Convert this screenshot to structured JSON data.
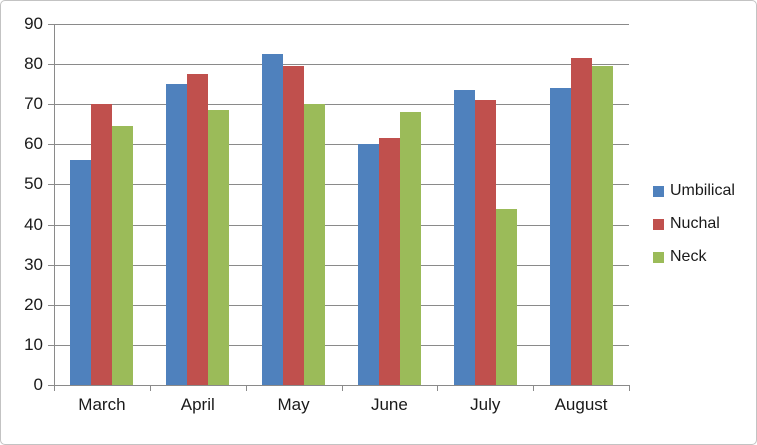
{
  "chart_data": {
    "type": "bar",
    "title": "",
    "xlabel": "",
    "ylabel": "",
    "categories": [
      "March",
      "April",
      "May",
      "June",
      "July",
      "August"
    ],
    "series": [
      {
        "name": "Umbilical",
        "color": "#4F81BD",
        "values": [
          56,
          75,
          82.5,
          60,
          73.5,
          74
        ]
      },
      {
        "name": "Nuchal",
        "color": "#C0504D",
        "values": [
          70,
          77.5,
          79.5,
          61.5,
          71,
          81.5
        ]
      },
      {
        "name": "Neck",
        "color": "#9BBB59",
        "values": [
          64.5,
          68.5,
          70,
          68,
          44,
          79.5
        ]
      }
    ],
    "ylim": [
      0,
      90
    ],
    "ytick_step": 10,
    "ytick_labels": [
      "0",
      "10",
      "20",
      "30",
      "40",
      "50",
      "60",
      "70",
      "80",
      "90"
    ],
    "grid": true,
    "legend_position": "right",
    "legend_entries": [
      "Umbilical",
      "Nuchal",
      "Neck"
    ]
  },
  "colors": {
    "series_umbilical": "#4F81BD",
    "series_nuchal": "#C0504D",
    "series_neck": "#9BBB59",
    "gridline": "#8A8A8A",
    "axis": "#8A8A8A",
    "chart_border": "#C3C3C3",
    "text": "#1A1A1A",
    "background": "#FFFFFF"
  }
}
